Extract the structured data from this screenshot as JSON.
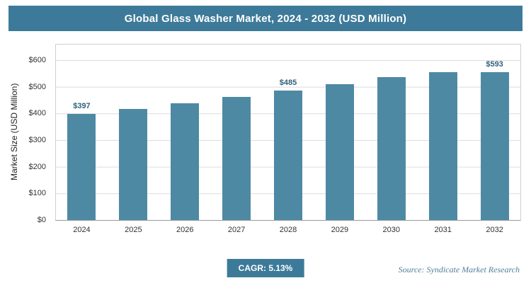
{
  "header": {
    "title": "Global Glass Washer Market, 2024 - 2032 (USD Million)"
  },
  "footer": {
    "cagr": "CAGR: 5.13%",
    "source": "Source: Syndicate Market Research"
  },
  "colors": {
    "header_bg": "#3d7a99",
    "bar_fill": "#4e89a4",
    "grid_line": "#dcdcdc",
    "value_label": "#31617a",
    "source_text": "#4e7f9a"
  },
  "chart_data": {
    "type": "bar",
    "title": "Global Glass Washer Market, 2024 - 2032 (USD Million)",
    "categories": [
      "2024",
      "2025",
      "2026",
      "2027",
      "2028",
      "2029",
      "2030",
      "2031",
      "2032"
    ],
    "values": [
      397,
      417,
      439,
      461,
      485,
      510,
      536,
      563,
      593
    ],
    "data_labels": [
      "$397",
      "",
      "",
      "",
      "$485",
      "",
      "",
      "",
      "$593"
    ],
    "xlabel": "",
    "ylabel": "Market Size (USD Million)",
    "ylim": [
      0,
      600
    ],
    "ytick_step": 100,
    "ytick_labels_top_down": [
      "$600",
      "$500",
      "$400",
      "$300",
      "$200",
      "$100",
      "$0"
    ],
    "grid": true,
    "legend": false,
    "cagr_percent": "5.13%"
  }
}
